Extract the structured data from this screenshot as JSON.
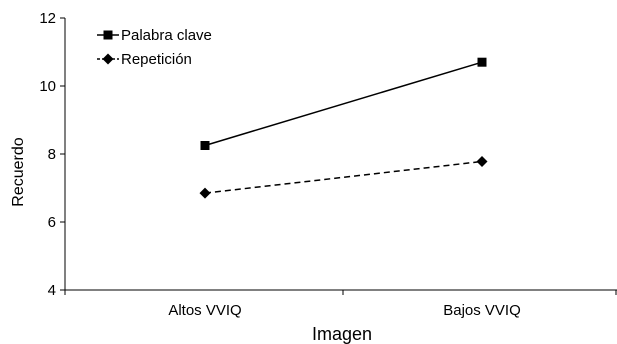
{
  "chart_data": {
    "type": "line",
    "categories": [
      "Altos VVIQ",
      "Bajos VVIQ"
    ],
    "series": [
      {
        "name": "Palabra clave",
        "values": [
          8.25,
          10.7
        ],
        "marker": "square",
        "line_style": "solid"
      },
      {
        "name": "Repetición",
        "values": [
          6.85,
          7.78
        ],
        "marker": "diamond",
        "line_style": "dashed"
      }
    ],
    "title": "",
    "xlabel": "Imagen",
    "ylabel": "Recuerdo",
    "ylim": [
      4,
      12
    ],
    "yticks": [
      "4",
      "6",
      "8",
      "10",
      "12"
    ],
    "grid": false,
    "legend_position": "top-left",
    "colors": {
      "series": "#000000",
      "axis": "#000000"
    }
  }
}
